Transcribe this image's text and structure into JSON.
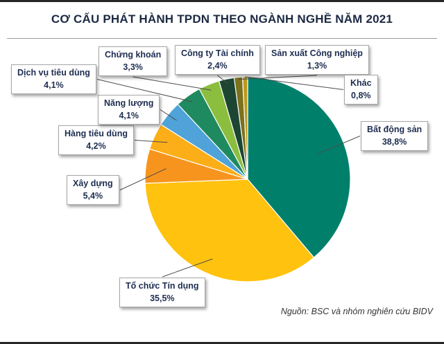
{
  "chart_data": {
    "type": "pie",
    "title": "CƠ CẤU PHÁT HÀNH TPDN THEO NGÀNH NGHỀ NĂM 2021",
    "unit": "percent",
    "direction": "clockwise",
    "start_angle_deg": 0,
    "legend_position": "callout-labels-around-pie",
    "categories": [
      "Bất động sản",
      "Tổ chức Tín dụng",
      "Xây dựng",
      "Hàng tiêu dùng",
      "Năng lượng",
      "Dịch vụ tiêu dùng",
      "Chứng khoán",
      "Công ty Tài chính",
      "Sản xuất Công nghiệp",
      "Khác"
    ],
    "values": [
      38.8,
      35.5,
      5.4,
      4.2,
      4.1,
      4.1,
      3.3,
      2.4,
      1.3,
      0.8
    ],
    "value_labels": [
      "38,8%",
      "35,5%",
      "5,4%",
      "4,2%",
      "4,1%",
      "4,1%",
      "3,3%",
      "2,4%",
      "1,3%",
      "0,8%"
    ],
    "colors": [
      "#00806B",
      "#FFC20E",
      "#F7941E",
      "#FBAE17",
      "#4FA3D8",
      "#1F8A60",
      "#8BBE3F",
      "#1C4632",
      "#7C711C",
      "#B89A1F"
    ]
  },
  "source_note": "Nguồn: BSC và nhóm nghiên cứu BIDV",
  "accent": {
    "title_color": "#1B2942",
    "rule_color": "#262626"
  }
}
